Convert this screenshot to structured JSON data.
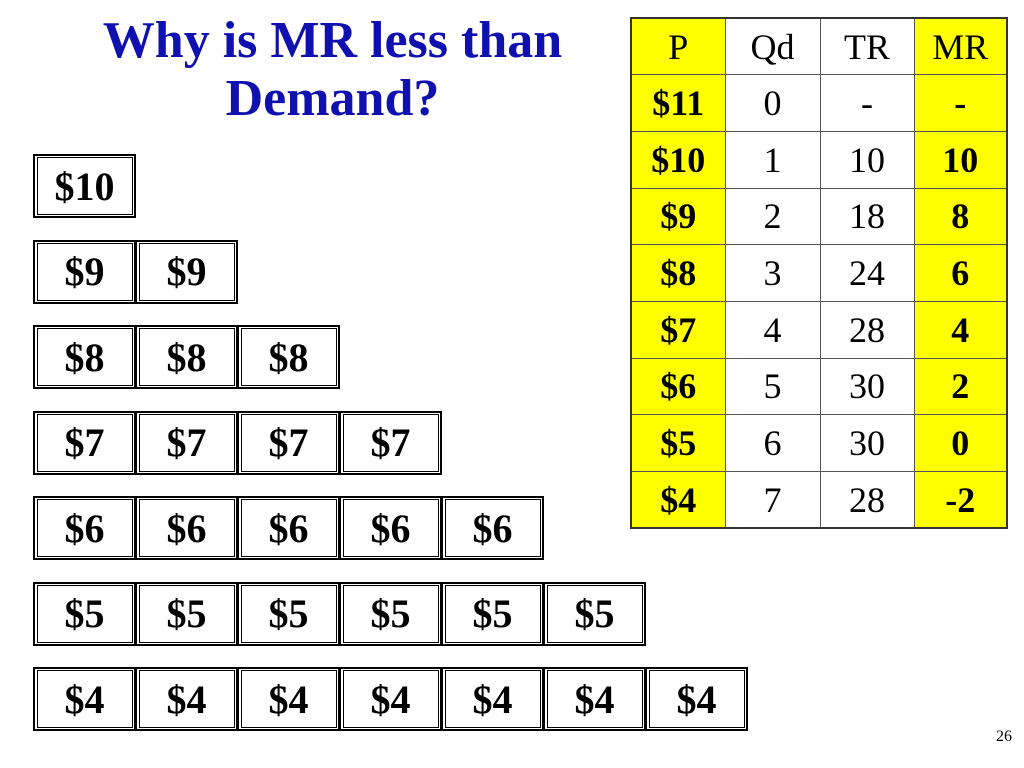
{
  "slide": {
    "title_line1": "Why is MR less than",
    "title_line2": "Demand?",
    "page_number": "26"
  },
  "price_rows": [
    [
      "$10"
    ],
    [
      "$9",
      "$9"
    ],
    [
      "$8",
      "$8",
      "$8"
    ],
    [
      "$7",
      "$7",
      "$7",
      "$7"
    ],
    [
      "$6",
      "$6",
      "$6",
      "$6",
      "$6"
    ],
    [
      "$5",
      "$5",
      "$5",
      "$5",
      "$5",
      "$5"
    ],
    [
      "$4",
      "$4",
      "$4",
      "$4",
      "$4",
      "$4",
      "$4"
    ]
  ],
  "table": {
    "headers": [
      "P",
      "Qd",
      "TR",
      "MR"
    ],
    "rows": [
      [
        "$11",
        "0",
        "-",
        "-"
      ],
      [
        "$10",
        "1",
        "10",
        "10"
      ],
      [
        "$9",
        "2",
        "18",
        "8"
      ],
      [
        "$8",
        "3",
        "24",
        "6"
      ],
      [
        "$7",
        "4",
        "28",
        "4"
      ],
      [
        "$6",
        "5",
        "30",
        "2"
      ],
      [
        "$5",
        "6",
        "30",
        "0"
      ],
      [
        "$4",
        "7",
        "28",
        "-2"
      ]
    ]
  },
  "colors": {
    "title": "#1010b0",
    "highlight": "#ffff00"
  }
}
